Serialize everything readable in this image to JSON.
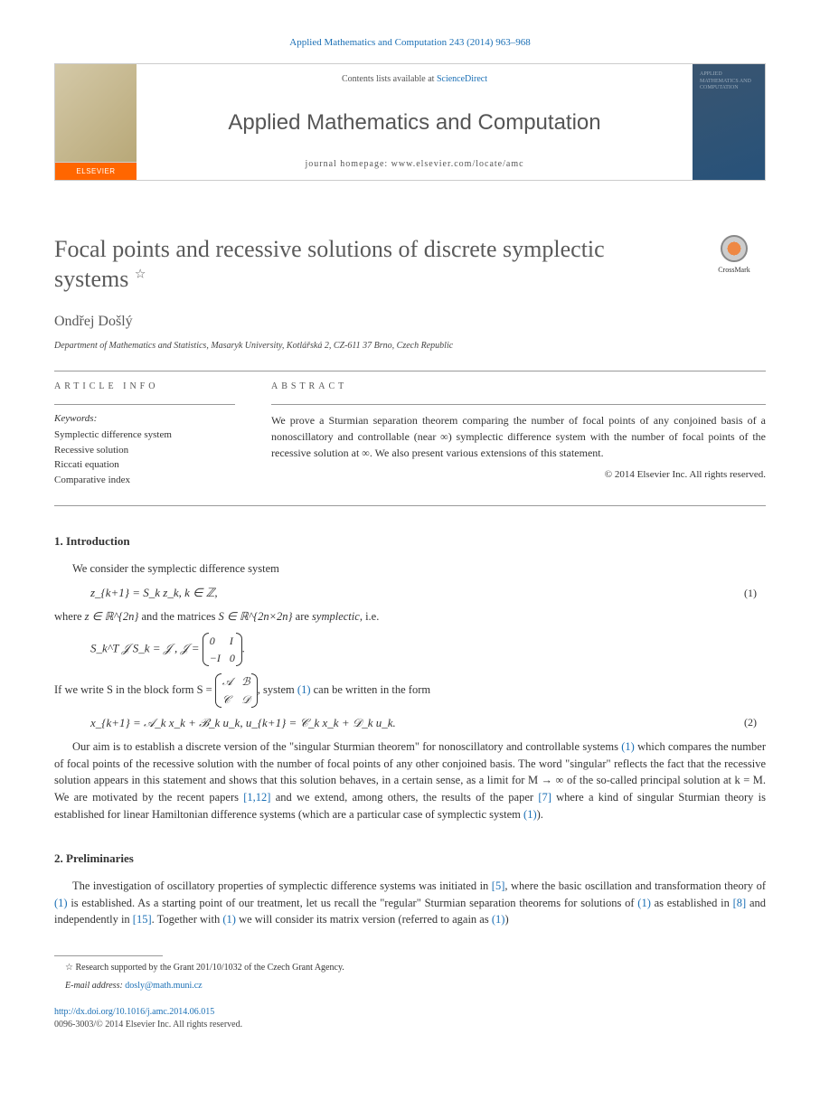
{
  "header": {
    "citation": "Applied Mathematics and Computation 243 (2014) 963–968",
    "contents_prefix": "Contents lists available at ",
    "contents_link": "ScienceDirect",
    "journal": "Applied Mathematics and Computation",
    "homepage_label": "journal homepage: ",
    "homepage_url": "www.elsevier.com/locate/amc",
    "elsevier": "ELSEVIER",
    "cover_text": "APPLIED MATHEMATICS AND COMPUTATION"
  },
  "article": {
    "title": "Focal points and recessive solutions of discrete symplectic systems",
    "title_mark": "☆",
    "crossmark": "CrossMark",
    "author": "Ondřej Došlý",
    "affiliation": "Department of Mathematics and Statistics, Masaryk University, Kotlářská 2, CZ-611 37 Brno, Czech Republic"
  },
  "info": {
    "label": "ARTICLE INFO",
    "keywords_label": "Keywords:",
    "keywords": [
      "Symplectic difference system",
      "Recessive solution",
      "Riccati equation",
      "Comparative index"
    ]
  },
  "abstract": {
    "label": "ABSTRACT",
    "text": "We prove a Sturmian separation theorem comparing the number of focal points of any conjoined basis of a nonoscillatory and controllable (near ∞) symplectic difference system with the number of focal points of the recessive solution at ∞. We also present various extensions of this statement.",
    "copyright": "© 2014 Elsevier Inc. All rights reserved."
  },
  "sections": {
    "intro_heading": "1. Introduction",
    "intro_p1": "We consider the symplectic difference system",
    "eq1": "z_{k+1} = S_k z_k,   k ∈ ℤ,",
    "eq1_num": "(1)",
    "intro_p2_a": "where ",
    "intro_p2_b": "z ∈ ℝ^{2n}",
    "intro_p2_c": " and the matrices ",
    "intro_p2_d": "S ∈ ℝ^{2n×2n}",
    "intro_p2_e": " are ",
    "intro_p2_f": "symplectic",
    "intro_p2_g": ", i.e.",
    "eq2a": "S_k^T 𝒥 S_k = 𝒥 ,    𝒥 = ",
    "intro_p3_a": "If we write S in the block form S = ",
    "intro_p3_b": ", system ",
    "intro_p3_c": " can be written in the form",
    "eq3": "x_{k+1} = 𝒜_k x_k + ℬ_k u_k,    u_{k+1} = 𝒞_k x_k + 𝒟_k u_k.",
    "eq3_num": "(2)",
    "intro_p4_a": "Our aim is to establish a discrete version of the \"singular Sturmian theorem\" for nonoscillatory and controllable systems ",
    "intro_p4_b": " which compares the number of focal points of the recessive solution with the number of focal points of any other conjoined basis. The word \"singular\" reflects the fact that the recessive solution appears in this statement and shows that this solution behaves, in a certain sense, as a limit for M → ∞ of the so-called principal solution at k = M. We are motivated by the recent papers ",
    "intro_p4_c": " and we extend, among others, the results of the paper ",
    "intro_p4_d": " where a kind of singular Sturmian theory is established for linear Hamiltonian difference systems (which are a particular case of symplectic system ",
    "intro_p4_e": ").",
    "prelim_heading": "2. Preliminaries",
    "prelim_p1_a": "The investigation of oscillatory properties of symplectic difference systems was initiated in ",
    "prelim_p1_b": ", where the basic oscillation and transformation theory of ",
    "prelim_p1_c": " is established. As a starting point of our treatment, let us recall the \"regular\" Sturmian separation theorems for solutions of ",
    "prelim_p1_d": " as established in ",
    "prelim_p1_e": " and independently in ",
    "prelim_p1_f": ". Together with ",
    "prelim_p1_g": " we will consider its matrix version (referred to again as ",
    "prelim_p1_h": ")"
  },
  "refs": {
    "r1": "(1)",
    "r112": "[1,12]",
    "r7": "[7]",
    "r5": "[5]",
    "r8": "[8]",
    "r15": "[15]"
  },
  "matrix": {
    "j": [
      "0",
      "I",
      "−I",
      "0"
    ],
    "s": [
      "𝒜",
      "ℬ",
      "𝒞",
      "𝒟"
    ]
  },
  "footnotes": {
    "grant": "☆ Research supported by the Grant 201/10/1032 of the Czech Grant Agency.",
    "email_label": "E-mail address: ",
    "email": "dosly@math.muni.cz"
  },
  "footer": {
    "doi": "http://dx.doi.org/10.1016/j.amc.2014.06.015",
    "issn": "0096-3003/© 2014 Elsevier Inc. All rights reserved."
  }
}
